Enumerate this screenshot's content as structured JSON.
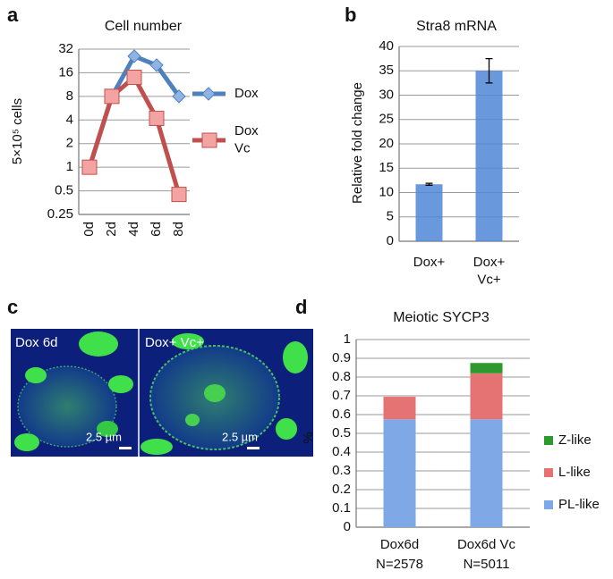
{
  "chart_data": [
    {
      "type": "line",
      "panel": "a",
      "title": "Cell number",
      "ylabel": "5×10⁵ cells",
      "categories": [
        "0d",
        "2d",
        "4d",
        "6d",
        "8d"
      ],
      "series": [
        {
          "name": "Dox",
          "color": "#4f81bd",
          "marker": "diamond",
          "marker_color": "#8fb4e3",
          "values": [
            1,
            8,
            26,
            20,
            8
          ]
        },
        {
          "name": "Dox\nVc",
          "color": "#c0504d",
          "marker": "square",
          "marker_color": "#f4a3a3",
          "values": [
            1,
            8,
            14,
            4.2,
            0.45
          ]
        }
      ],
      "log_scale": true,
      "ylim": [
        0.25,
        32
      ],
      "yticks": [
        0.25,
        0.5,
        1,
        2,
        4,
        8,
        16,
        32
      ],
      "grid": true
    },
    {
      "type": "bar",
      "panel": "b",
      "title": "Stra8 mRNA",
      "ylabel": "Relative fold change",
      "categories": [
        "Dox+",
        "Dox+\nVc+"
      ],
      "values": [
        11.7,
        35
      ],
      "errors": [
        0.2,
        2.5
      ],
      "color": "#4f86d6",
      "ylim": [
        0,
        40
      ],
      "yticks": [
        0,
        5,
        10,
        15,
        20,
        25,
        30,
        35,
        40
      ],
      "grid": true
    },
    {
      "type": "image",
      "panel": "c",
      "labels": [
        "Dox 6d",
        "Dox+ Vc+"
      ],
      "scale_labels": [
        "2.5 µm",
        "2.5 µm"
      ]
    },
    {
      "type": "stacked_bar",
      "panel": "d",
      "title": "Meiotic SYCP3",
      "ylabel": "%",
      "categories": [
        "Dox6d",
        "Dox6d Vc"
      ],
      "sublabels": [
        "N=2578",
        "N=5011"
      ],
      "series": [
        {
          "name": "PL-like",
          "color": "#7fa9e6",
          "values": [
            0.575,
            0.575
          ]
        },
        {
          "name": "L-like",
          "color": "#e57373",
          "values": [
            0.12,
            0.245
          ]
        },
        {
          "name": "Z-like",
          "color": "#2e9a2e",
          "values": [
            0,
            0.055
          ]
        }
      ],
      "ylim": [
        0,
        1
      ],
      "yticks": [
        0,
        0.1,
        0.2,
        0.3,
        0.4,
        0.5,
        0.6,
        0.7,
        0.8,
        0.9,
        1
      ],
      "grid": true
    }
  ]
}
